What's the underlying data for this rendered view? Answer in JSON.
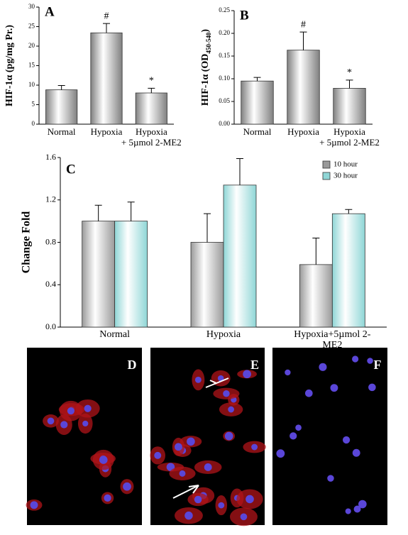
{
  "chart_data": [
    {
      "type": "bar",
      "title": "A",
      "ylabel": "HIF-1α (pg/mg Pr.)",
      "categories": [
        "Normal",
        "Hypoxia",
        "Hypoxia\n+ 5µmol 2-ME2"
      ],
      "values": [
        8.8,
        23.4,
        8.0
      ],
      "errors": [
        1.1,
        2.4,
        1.2
      ],
      "markers": [
        null,
        "#",
        "*"
      ],
      "color": "#808080",
      "ylim": [
        0,
        30
      ],
      "yticks": [
        0,
        5,
        10,
        15,
        20,
        25,
        30
      ]
    },
    {
      "type": "bar",
      "title": "B",
      "ylabel": [
        "HIF-1α (OD",
        "450-540",
        ")"
      ],
      "categories": [
        "Normal",
        "Hypoxia",
        "Hypoxia\n+ 5µmol 2-ME2"
      ],
      "values": [
        0.095,
        0.163,
        0.079
      ],
      "errors": [
        0.008,
        0.04,
        0.018
      ],
      "markers": [
        null,
        "#",
        "*"
      ],
      "color": "#808080",
      "ylim": [
        0,
        0.25
      ],
      "yticks": [
        {
          "value": 0,
          "label": "0.00"
        },
        0.05,
        {
          "value": 0.1,
          "label": "0.10"
        },
        0.15,
        {
          "value": 0.2,
          "label": "0.20"
        },
        0.25
      ]
    },
    {
      "type": "bar",
      "title": "C",
      "ylabel": "Change Fold",
      "categories": [
        "Normal",
        "Hypoxia",
        "Hypoxia+5µmol 2-ME2"
      ],
      "series": [
        {
          "name": "10 hour",
          "color": "#9a9a9a",
          "values": [
            1.0,
            0.8,
            0.59
          ],
          "errors": [
            0.15,
            0.27,
            0.25
          ]
        },
        {
          "name": "30 hour",
          "color": "#8fd6d6",
          "values": [
            1.0,
            1.34,
            1.07
          ],
          "errors": [
            0.18,
            0.25,
            0.04
          ]
        }
      ],
      "legend": "top-right",
      "ylim": [
        0,
        1.6
      ],
      "yticks": [
        {
          "value": 0,
          "label": "0.0"
        },
        0.4,
        0.8,
        1.2,
        1.6
      ]
    }
  ],
  "images": [
    {
      "label": "D"
    },
    {
      "label": "E"
    },
    {
      "label": "F"
    }
  ]
}
